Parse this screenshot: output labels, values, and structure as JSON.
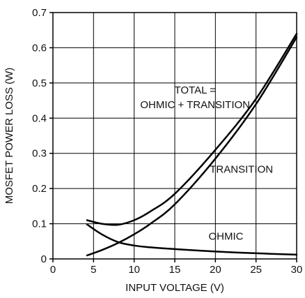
{
  "chart_data": {
    "type": "line",
    "xlabel": "INPUT VOLTAGE (V)",
    "ylabel": "MOSFET POWER LOSS (W)",
    "xlim": [
      0,
      30
    ],
    "ylim": [
      0,
      0.7
    ],
    "x_ticks": [
      0,
      5,
      10,
      15,
      20,
      25,
      30
    ],
    "x_tick_labels": [
      "0",
      "5",
      "10",
      "15",
      "20",
      "25",
      "30"
    ],
    "y_ticks": [
      0,
      0.1,
      0.2,
      0.3,
      0.4,
      0.5,
      0.6,
      0.7
    ],
    "y_tick_labels": [
      "0",
      "0.1",
      "0.2",
      "0.3",
      "0.4",
      "0.5",
      "0.6",
      "0.7"
    ],
    "grid": true,
    "line_color": "#000000",
    "series": [
      {
        "name": "TOTAL = OHMIC + TRANSITION",
        "x": [
          4.2,
          6,
          8,
          10,
          12,
          15,
          20,
          25,
          30
        ],
        "y": [
          0.11,
          0.1,
          0.097,
          0.11,
          0.135,
          0.185,
          0.31,
          0.455,
          0.64
        ]
      },
      {
        "name": "TRANSITION",
        "x": [
          4.2,
          6,
          8,
          10,
          12,
          15,
          20,
          25,
          30
        ],
        "y": [
          0.01,
          0.025,
          0.045,
          0.07,
          0.1,
          0.155,
          0.285,
          0.44,
          0.63
        ]
      },
      {
        "name": "OHMIC",
        "x": [
          4.2,
          6,
          8,
          10,
          12,
          15,
          20,
          25,
          30
        ],
        "y": [
          0.098,
          0.07,
          0.048,
          0.038,
          0.033,
          0.028,
          0.021,
          0.016,
          0.012
        ]
      }
    ],
    "annotations": [
      {
        "lines": [
          "TOTAL =",
          "OHMIC + TRANSITION"
        ],
        "x": 17.5,
        "y": 0.47
      },
      {
        "lines": [
          "TRANSITION"
        ],
        "x": 23.2,
        "y": 0.245
      },
      {
        "lines": [
          "OHMIC"
        ],
        "x": 21.3,
        "y": 0.055
      }
    ]
  }
}
